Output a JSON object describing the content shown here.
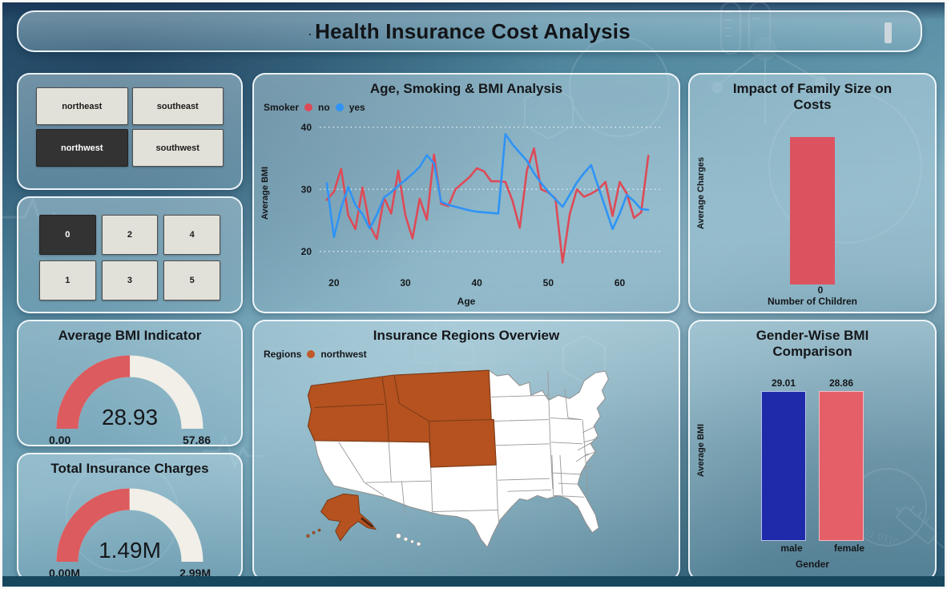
{
  "frame": {
    "bottom_band_color": "#16475c"
  },
  "header": {
    "bullet": "·",
    "title": "Health Insurance Cost Analysis"
  },
  "slicers": {
    "region": {
      "options": [
        {
          "label": "northeast",
          "selected": false
        },
        {
          "label": "southeast",
          "selected": false
        },
        {
          "label": "northwest",
          "selected": true
        },
        {
          "label": "southwest",
          "selected": false
        }
      ]
    },
    "children": {
      "options": [
        {
          "label": "0",
          "selected": true
        },
        {
          "label": "2",
          "selected": false
        },
        {
          "label": "4",
          "selected": false
        },
        {
          "label": "1",
          "selected": false
        },
        {
          "label": "3",
          "selected": false
        },
        {
          "label": "5",
          "selected": false
        }
      ]
    }
  },
  "chart_data": [
    {
      "type": "line",
      "title": "Age, Smoking & BMI Analysis",
      "legend_title": "Smoker",
      "xlabel": "Age",
      "ylabel": "Average BMI",
      "xlim": [
        18,
        66
      ],
      "ylim": [
        17,
        41
      ],
      "xticks": [
        20,
        30,
        40,
        50,
        60
      ],
      "yticks": [
        20,
        30,
        40
      ],
      "grid": true,
      "series": [
        {
          "name": "no",
          "color": "#de4a57",
          "points": [
            [
              19,
              28.3
            ],
            [
              20,
              29.6
            ],
            [
              21,
              33.3
            ],
            [
              22,
              25.8
            ],
            [
              23,
              23.6
            ],
            [
              24,
              30.3
            ],
            [
              25,
              24.2
            ],
            [
              26,
              22.0
            ],
            [
              27,
              28.7
            ],
            [
              28,
              26.1
            ],
            [
              29,
              33.0
            ],
            [
              30,
              25.8
            ],
            [
              31,
              22.1
            ],
            [
              32,
              28.5
            ],
            [
              33,
              25.1
            ],
            [
              34,
              35.6
            ],
            [
              35,
              27.7
            ],
            [
              36,
              27.3
            ],
            [
              37,
              30.0
            ],
            [
              38,
              31.0
            ],
            [
              39,
              32.0
            ],
            [
              40,
              33.4
            ],
            [
              41,
              32.9
            ],
            [
              42,
              31.3
            ],
            [
              43,
              31.3
            ],
            [
              44,
              31.2
            ],
            [
              45,
              28.1
            ],
            [
              46,
              23.8
            ],
            [
              47,
              33.0
            ],
            [
              48,
              36.6
            ],
            [
              49,
              30.0
            ],
            [
              50,
              29.5
            ],
            [
              51,
              28.5
            ],
            [
              52,
              18.2
            ],
            [
              53,
              26.0
            ],
            [
              54,
              30.0
            ],
            [
              55,
              28.8
            ],
            [
              56,
              29.3
            ],
            [
              57,
              30.0
            ],
            [
              58,
              31.2
            ],
            [
              59,
              25.7
            ],
            [
              60,
              31.2
            ],
            [
              61,
              29.3
            ],
            [
              62,
              25.4
            ],
            [
              63,
              26.3
            ],
            [
              64,
              35.4
            ]
          ]
        },
        {
          "name": "yes",
          "color": "#2f93f6",
          "points": [
            [
              19,
              31.0
            ],
            [
              20,
              22.3
            ],
            [
              21,
              27.0
            ],
            [
              22,
              30.4
            ],
            [
              23,
              27.5
            ],
            [
              24,
              26.0
            ],
            [
              25,
              23.7
            ],
            [
              26,
              25.9
            ],
            [
              27,
              28.7
            ],
            [
              28,
              29.5
            ],
            [
              29,
              30.6
            ],
            [
              30,
              31.5
            ],
            [
              31,
              32.5
            ],
            [
              32,
              33.6
            ],
            [
              33,
              35.5
            ],
            [
              34,
              34.2
            ],
            [
              35,
              28.0
            ],
            [
              36,
              27.5
            ],
            [
              37,
              27.2
            ],
            [
              38,
              26.9
            ],
            [
              39,
              26.6
            ],
            [
              40,
              26.4
            ],
            [
              41,
              26.3
            ],
            [
              42,
              26.2
            ],
            [
              43,
              26.1
            ],
            [
              44,
              38.9
            ],
            [
              45,
              37.2
            ],
            [
              46,
              35.9
            ],
            [
              47,
              34.6
            ],
            [
              48,
              32.6
            ],
            [
              49,
              31.0
            ],
            [
              50,
              29.6
            ],
            [
              51,
              28.4
            ],
            [
              52,
              27.2
            ],
            [
              53,
              29.1
            ],
            [
              54,
              31.1
            ],
            [
              55,
              32.6
            ],
            [
              56,
              33.9
            ],
            [
              57,
              30.4
            ],
            [
              58,
              27.0
            ],
            [
              59,
              23.6
            ],
            [
              60,
              26.1
            ],
            [
              61,
              29.1
            ],
            [
              62,
              28.1
            ],
            [
              63,
              26.8
            ],
            [
              64,
              26.7
            ]
          ]
        }
      ]
    },
    {
      "type": "gauge",
      "title": "Average BMI Indicator",
      "value": 28.93,
      "min": 0,
      "max": 57.86,
      "value_display": "28.93",
      "min_display": "0.00",
      "max_display": "57.86",
      "fill_color": "#dc5b5e",
      "track_color": "#f1efe8"
    },
    {
      "type": "gauge",
      "title": "Total Insurance Charges",
      "value": 1.49,
      "min": 0,
      "max": 2.99,
      "value_display": "1.49M",
      "min_display": "0.00M",
      "max_display": "2.99M",
      "fill_color": "#dc5b5e",
      "track_color": "#f1efe8"
    },
    {
      "type": "bar",
      "title": "Impact of Family Size on Costs",
      "xlabel": "Number of Children",
      "ylabel": "Average Charges",
      "categories": [
        "0"
      ],
      "relative_heights": [
        0.93
      ],
      "bar_color": "#dc5360",
      "value_labels_shown": false
    },
    {
      "type": "map",
      "title": "Insurance Regions Overview",
      "legend_title": "Regions",
      "legend_items": [
        {
          "label": "northwest",
          "color": "#c05a28"
        }
      ],
      "highlighted_region": "northwest",
      "highlighted_states": [
        "Washington",
        "Oregon",
        "Idaho",
        "Montana",
        "Wyoming",
        "Alaska"
      ],
      "highlight_color": "#b5521f",
      "state_color": "#ffffff",
      "border_color": "#8f8f8f"
    },
    {
      "type": "bar",
      "title": "Gender-Wise BMI Comparison",
      "xlabel": "Gender",
      "ylabel": "Average BMI",
      "categories": [
        "male",
        "female"
      ],
      "values": [
        29.01,
        28.86
      ],
      "value_labels": [
        "29.01",
        "28.86"
      ],
      "ylim": [
        0,
        30
      ],
      "bar_colors": [
        "#1f2aaa",
        "#e55f69"
      ],
      "bar_border_colors": [
        "#b9c2ee",
        "#f6bcc4"
      ]
    }
  ]
}
